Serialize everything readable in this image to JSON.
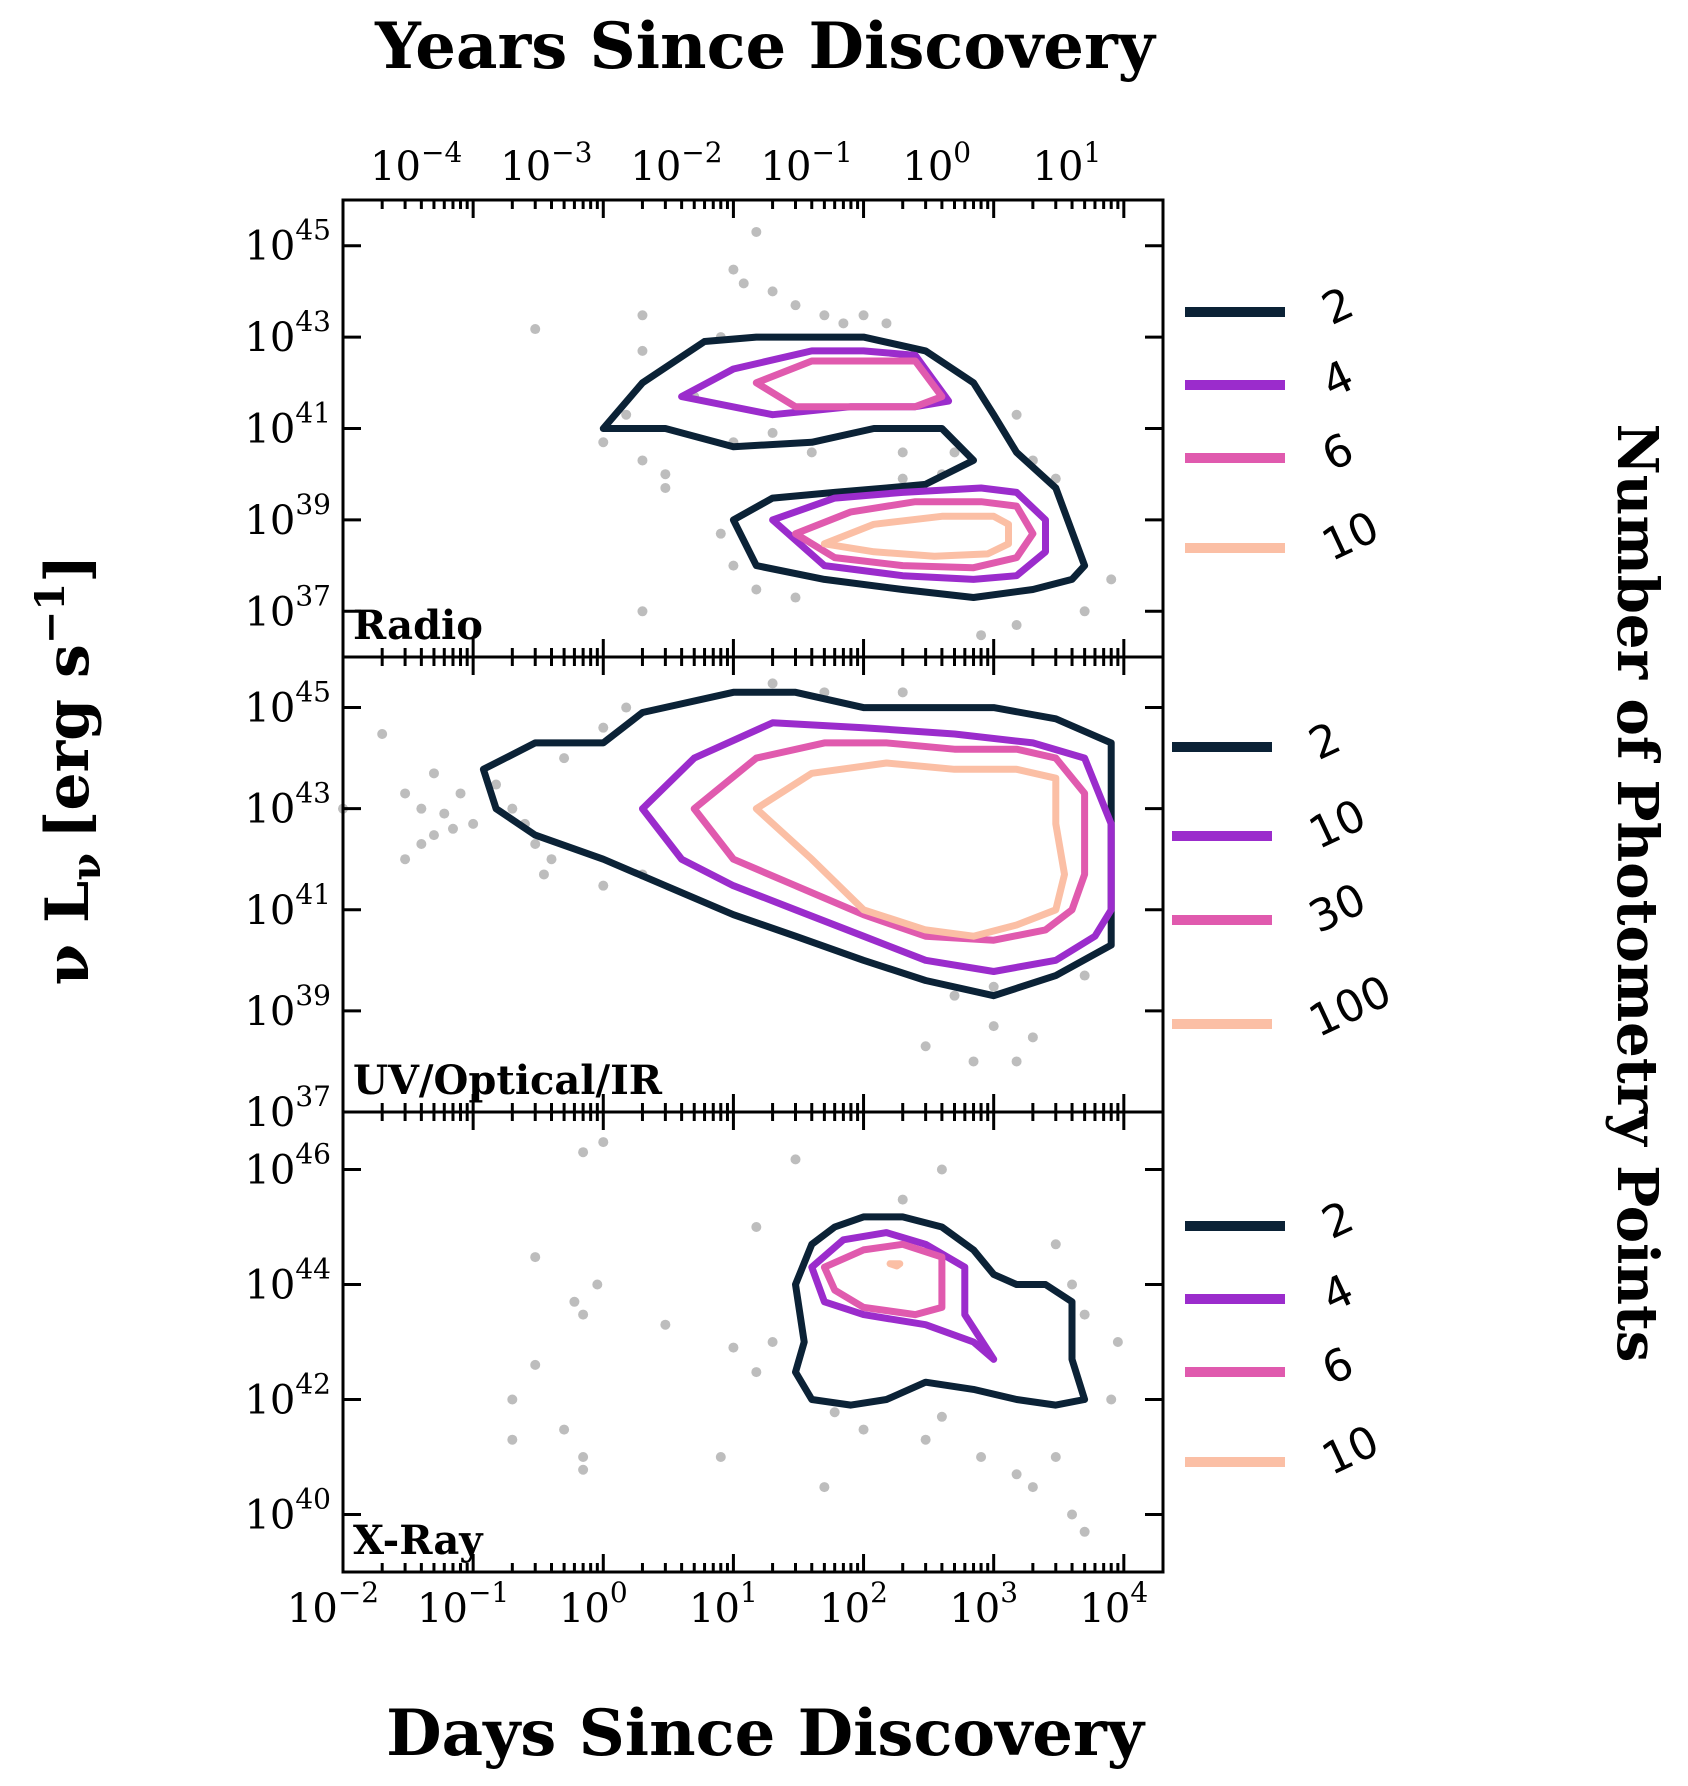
{
  "figure": {
    "top_axis_title": "Years Since Discovery",
    "bottom_axis_title": "Days Since Discovery",
    "y_axis_title": "ν L",
    "y_axis_title_sub": "ν",
    "y_axis_title_unit": "[erg s",
    "y_axis_title_sup": "−1",
    "y_axis_title_end": "]",
    "colorbar_title": "Number of Photometry Points"
  },
  "colors": {
    "level1": "#0b2236",
    "level2": "#9b2ccc",
    "level3": "#e05aae",
    "level4": "#fbbfa5",
    "points": "#bdbdbd"
  },
  "chart_data": [
    {
      "type": "scatter",
      "panel_label": "Radio",
      "x_scale": "log",
      "y_scale": "log",
      "xlim": [
        0.01,
        20000
      ],
      "ylim": [
        1e+36,
        1e+46
      ],
      "x_ticks": [
        0.01,
        0.1,
        1,
        10,
        100,
        1000,
        10000
      ],
      "y_ticks": [
        1e+37,
        1e+39,
        1e+41,
        1e+43,
        1e+45
      ],
      "y_tick_labels": [
        {
          "b": "10",
          "e": "37"
        },
        {
          "b": "10",
          "e": "39"
        },
        {
          "b": "10",
          "e": "41"
        },
        {
          "b": "10",
          "e": "43"
        },
        {
          "b": "10",
          "e": "45"
        }
      ],
      "top_ticks_years": [
        "-4",
        "-3",
        "-2",
        "-1",
        "0",
        "1"
      ],
      "legend": [
        "2",
        "4",
        "6",
        "10"
      ],
      "contours": [
        {
          "level": "2",
          "x": [
            1,
            2,
            6,
            15,
            40,
            100,
            300,
            700,
            1000,
            1500,
            3000,
            5000,
            4000,
            2000,
            700,
            200,
            50,
            15,
            10,
            20,
            60,
            150,
            300,
            700,
            400,
            120,
            40,
            10,
            3,
            1
          ],
          "y": [
            1e+41,
            1e+42,
            8e+42,
            1e+43,
            1e+43,
            1e+43,
            5e+42,
            1e+42,
            2e+41,
            3e+40,
            5e+39,
            1e+38,
            5e+37,
            3e+37,
            2e+37,
            3e+37,
            5e+37,
            1e+38,
            1e+39,
            3e+39,
            4e+39,
            5e+39,
            6e+39,
            2e+40,
            1e+41,
            1e+41,
            5e+40,
            4e+40,
            1e+41,
            1e+41
          ],
          "closed": true
        },
        {
          "level": "4",
          "x": [
            4,
            10,
            40,
            100,
            250,
            450,
            250,
            80,
            20,
            4
          ],
          "y": [
            5e+41,
            2e+42,
            5e+42,
            5e+42,
            4e+42,
            4e+41,
            3e+41,
            3e+41,
            2e+41,
            5e+41
          ],
          "closed": true
        },
        {
          "level": "6",
          "x": [
            15,
            40,
            100,
            250,
            400,
            250,
            100,
            30,
            15
          ],
          "y": [
            1e+42,
            3e+42,
            3e+42,
            3e+42,
            5e+41,
            3e+41,
            3e+41,
            3e+41,
            1e+42
          ],
          "closed": true
        },
        {
          "level": "4",
          "x": [
            20,
            60,
            200,
            800,
            1500,
            2500,
            2500,
            1500,
            700,
            200,
            50,
            20
          ],
          "y": [
            1e+39,
            3e+39,
            4e+39,
            5e+39,
            4e+39,
            1e+39,
            2e+38,
            6e+37,
            5e+37,
            6e+37,
            1e+38,
            1e+39
          ],
          "closed": true
        },
        {
          "level": "6",
          "x": [
            30,
            80,
            250,
            800,
            1500,
            2000,
            1500,
            700,
            200,
            60,
            30
          ],
          "y": [
            5e+38,
            1.5e+39,
            2.5e+39,
            2.5e+39,
            2e+39,
            5e+38,
            1.5e+38,
            9e+37,
            1e+38,
            1.5e+38,
            5e+38
          ],
          "closed": true
        },
        {
          "level": "10",
          "x": [
            50,
            120,
            400,
            1000,
            1300,
            1300,
            900,
            350,
            120,
            50
          ],
          "y": [
            3e+38,
            8e+38,
            1.2e+39,
            1.2e+39,
            8e+38,
            3e+38,
            1.8e+38,
            1.6e+38,
            2e+38,
            3e+38
          ],
          "closed": true
        }
      ],
      "points": [
        {
          "x": 0.3,
          "y": 1.5e+43
        },
        {
          "x": 2,
          "y": 3e+43
        },
        {
          "x": 2,
          "y": 5e+42
        },
        {
          "x": 1.5,
          "y": 2e+41
        },
        {
          "x": 1,
          "y": 5e+40
        },
        {
          "x": 2,
          "y": 2e+40
        },
        {
          "x": 3,
          "y": 5e+39
        },
        {
          "x": 2,
          "y": 1e+37
        },
        {
          "x": 8,
          "y": 1e+43
        },
        {
          "x": 10,
          "y": 3e+44
        },
        {
          "x": 12,
          "y": 1.5e+44
        },
        {
          "x": 15,
          "y": 2e+45
        },
        {
          "x": 20,
          "y": 1e+44
        },
        {
          "x": 30,
          "y": 5e+43
        },
        {
          "x": 50,
          "y": 3e+43
        },
        {
          "x": 70,
          "y": 2e+43
        },
        {
          "x": 100,
          "y": 3e+43
        },
        {
          "x": 150,
          "y": 2e+43
        },
        {
          "x": 10,
          "y": 5e+40
        },
        {
          "x": 20,
          "y": 8e+40
        },
        {
          "x": 40,
          "y": 3e+40
        },
        {
          "x": 200,
          "y": 8e+39
        },
        {
          "x": 500,
          "y": 3e+40
        },
        {
          "x": 1500,
          "y": 2e+41
        },
        {
          "x": 2000,
          "y": 2e+40
        },
        {
          "x": 3000,
          "y": 8e+39
        },
        {
          "x": 5000,
          "y": 1e+37
        },
        {
          "x": 8000,
          "y": 5e+37
        },
        {
          "x": 1500,
          "y": 5e+36
        },
        {
          "x": 800,
          "y": 3e+36
        },
        {
          "x": 10,
          "y": 1e+38
        },
        {
          "x": 15,
          "y": 3e+37
        },
        {
          "x": 30,
          "y": 2e+37
        },
        {
          "x": 8,
          "y": 5e+38
        },
        {
          "x": 400,
          "y": 1e+40
        },
        {
          "x": 200,
          "y": 3e+40
        },
        {
          "x": 5,
          "y": 5e+41
        },
        {
          "x": 3,
          "y": 1e+40
        }
      ]
    },
    {
      "type": "scatter",
      "panel_label": "UV/Optical/IR",
      "x_scale": "log",
      "y_scale": "log",
      "xlim": [
        0.01,
        20000
      ],
      "ylim": [
        1e+37,
        1e+46
      ],
      "x_ticks": [
        0.01,
        0.1,
        1,
        10,
        100,
        1000,
        10000
      ],
      "y_ticks": [
        1e+37,
        1e+39,
        1e+41,
        1e+43,
        1e+45
      ],
      "y_tick_labels": [
        {
          "b": "10",
          "e": "37"
        },
        {
          "b": "10",
          "e": "39"
        },
        {
          "b": "10",
          "e": "41"
        },
        {
          "b": "10",
          "e": "43"
        },
        {
          "b": "10",
          "e": "45"
        }
      ],
      "legend": [
        "2",
        "10",
        "30",
        "100"
      ],
      "contours": [
        {
          "level": "2",
          "x": [
            0.12,
            0.3,
            1,
            2,
            10,
            30,
            100,
            300,
            1000,
            3000,
            8000,
            8000,
            3000,
            1000,
            300,
            100,
            30,
            10,
            3,
            1,
            0.3,
            0.15,
            0.12
          ],
          "y": [
            6e+43,
            2e+44,
            2e+44,
            8e+44,
            2e+45,
            2e+45,
            1e+45,
            1e+45,
            1e+45,
            6e+44,
            2e+44,
            2e+40,
            5e+39,
            2e+39,
            4e+39,
            1e+40,
            3e+40,
            8e+40,
            3e+41,
            1e+42,
            3e+42,
            1e+43,
            6e+43
          ],
          "closed": false
        },
        {
          "level": "10",
          "x": [
            2,
            5,
            20,
            100,
            500,
            2000,
            5000,
            8000,
            8000,
            6000,
            3000,
            1000,
            300,
            100,
            30,
            10,
            4,
            2
          ],
          "y": [
            1e+43,
            1e+44,
            5e+44,
            4e+44,
            3e+44,
            2e+44,
            1e+44,
            5e+42,
            1e+41,
            3e+40,
            1e+40,
            6e+39,
            1e+40,
            3e+40,
            1e+41,
            3e+41,
            1e+42,
            1e+43
          ],
          "closed": false
        },
        {
          "level": "30",
          "x": [
            5,
            15,
            50,
            150,
            500,
            1500,
            3000,
            5000,
            5000,
            4000,
            2500,
            1000,
            300,
            100,
            30,
            10,
            5
          ],
          "y": [
            1e+43,
            1e+44,
            2e+44,
            2e+44,
            1.5e+44,
            1.5e+44,
            1e+44,
            2e+43,
            5e+41,
            1e+41,
            4e+40,
            2.5e+40,
            3e+40,
            8e+40,
            3e+41,
            1e+42,
            1e+43
          ],
          "closed": true
        },
        {
          "level": "100",
          "x": [
            15,
            40,
            150,
            500,
            1500,
            3000,
            3000,
            3500,
            3000,
            1500,
            700,
            300,
            100,
            40,
            15
          ],
          "y": [
            1e+43,
            5e+43,
            8e+43,
            6e+43,
            6e+43,
            4e+43,
            5e+42,
            5e+41,
            1e+41,
            5e+40,
            3e+40,
            4e+40,
            1e+41,
            1e+42,
            1e+43
          ],
          "closed": true
        }
      ],
      "points": [
        {
          "x": 0.01,
          "y": 1e+43
        },
        {
          "x": 0.02,
          "y": 3e+44
        },
        {
          "x": 0.04,
          "y": 1e+43
        },
        {
          "x": 0.05,
          "y": 3e+42
        },
        {
          "x": 0.03,
          "y": 2e+43
        },
        {
          "x": 0.06,
          "y": 8e+42
        },
        {
          "x": 0.08,
          "y": 2e+43
        },
        {
          "x": 0.1,
          "y": 5e+42
        },
        {
          "x": 0.15,
          "y": 3e+43
        },
        {
          "x": 0.2,
          "y": 1e+43
        },
        {
          "x": 0.25,
          "y": 5e+42
        },
        {
          "x": 0.3,
          "y": 2e+42
        },
        {
          "x": 0.4,
          "y": 1e+42
        },
        {
          "x": 0.35,
          "y": 5e+41
        },
        {
          "x": 0.5,
          "y": 1e+44
        },
        {
          "x": 1,
          "y": 4e+44
        },
        {
          "x": 1.5,
          "y": 1e+45
        },
        {
          "x": 1,
          "y": 3e+41
        },
        {
          "x": 2,
          "y": 5e+41
        },
        {
          "x": 0.05,
          "y": 5e+43
        },
        {
          "x": 0.04,
          "y": 2e+42
        },
        {
          "x": 0.03,
          "y": 1e+42
        },
        {
          "x": 0.07,
          "y": 4e+42
        },
        {
          "x": 500,
          "y": 2e+39
        },
        {
          "x": 1000,
          "y": 5e+38
        },
        {
          "x": 300,
          "y": 2e+38
        },
        {
          "x": 700,
          "y": 1e+38
        },
        {
          "x": 2000,
          "y": 3e+38
        },
        {
          "x": 1500,
          "y": 1e+38
        },
        {
          "x": 1000,
          "y": 3e+39
        },
        {
          "x": 5000,
          "y": 5e+39
        },
        {
          "x": 20,
          "y": 3e+45
        },
        {
          "x": 50,
          "y": 2e+45
        },
        {
          "x": 200,
          "y": 2e+45
        }
      ]
    },
    {
      "type": "scatter",
      "panel_label": "X-Ray",
      "x_scale": "log",
      "y_scale": "log",
      "xlim": [
        0.01,
        20000
      ],
      "ylim": [
        1e+39,
        1e+47
      ],
      "x_ticks": [
        0.01,
        0.1,
        1,
        10,
        100,
        1000,
        10000
      ],
      "x_tick_labels": [
        {
          "b": "10",
          "e": "−2"
        },
        {
          "b": "10",
          "e": "−1"
        },
        {
          "b": "10",
          "e": "0"
        },
        {
          "b": "10",
          "e": "1"
        },
        {
          "b": "10",
          "e": "2"
        },
        {
          "b": "10",
          "e": "3"
        },
        {
          "b": "10",
          "e": "4"
        }
      ],
      "y_ticks": [
        1e+40,
        1e+42,
        1e+44,
        1e+46
      ],
      "y_tick_labels": [
        {
          "b": "10",
          "e": "40"
        },
        {
          "b": "10",
          "e": "42"
        },
        {
          "b": "10",
          "e": "44"
        },
        {
          "b": "10",
          "e": "46"
        }
      ],
      "legend": [
        "2",
        "4",
        "6",
        "10"
      ],
      "contours": [
        {
          "level": "2",
          "x": [
            30,
            40,
            60,
            100,
            200,
            400,
            700,
            1000,
            1500,
            2500,
            4000,
            4000,
            5000,
            3000,
            1500,
            700,
            300,
            150,
            80,
            40,
            30,
            35,
            30
          ],
          "y": [
            1e+44,
            5e+44,
            1e+45,
            1.5e+45,
            1.5e+45,
            1e+45,
            4e+44,
            1.5e+44,
            1e+44,
            1e+44,
            5e+43,
            5e+42,
            1e+42,
            8e+41,
            1e+42,
            1.5e+42,
            2e+42,
            1e+42,
            8e+41,
            1e+42,
            3e+42,
            1e+43,
            1e+44
          ],
          "closed": true
        },
        {
          "level": "4",
          "x": [
            40,
            70,
            150,
            300,
            600,
            600,
            1000,
            700,
            300,
            100,
            50,
            40
          ],
          "y": [
            2e+44,
            6e+44,
            8e+44,
            5e+44,
            2e+44,
            3e+43,
            5e+42,
            1e+43,
            2e+43,
            3e+43,
            5e+43,
            2e+44
          ],
          "closed": true
        },
        {
          "level": "6",
          "x": [
            50,
            100,
            200,
            400,
            400,
            250,
            100,
            60,
            50
          ],
          "y": [
            2e+44,
            4e+44,
            5e+44,
            3e+44,
            4e+43,
            3e+43,
            4e+43,
            8e+43,
            2e+44
          ],
          "closed": true
        },
        {
          "level": "10",
          "x": [
            160,
            190,
            180,
            160
          ],
          "y": [
            2.3e+44,
            2.3e+44,
            2.1e+44,
            2.3e+44
          ],
          "closed": true
        }
      ],
      "points": [
        {
          "x": 0.3,
          "y": 3e+44
        },
        {
          "x": 0.7,
          "y": 2e+46
        },
        {
          "x": 1,
          "y": 3e+46
        },
        {
          "x": 0.7,
          "y": 3e+43
        },
        {
          "x": 0.9,
          "y": 1e+44
        },
        {
          "x": 0.6,
          "y": 5e+43
        },
        {
          "x": 0.3,
          "y": 4e+42
        },
        {
          "x": 0.2,
          "y": 1e+42
        },
        {
          "x": 0.2,
          "y": 2e+41
        },
        {
          "x": 0.5,
          "y": 3e+41
        },
        {
          "x": 0.7,
          "y": 1e+41
        },
        {
          "x": 0.7,
          "y": 6e+40
        },
        {
          "x": 3,
          "y": 2e+43
        },
        {
          "x": 8,
          "y": 1e+41
        },
        {
          "x": 10,
          "y": 8e+42
        },
        {
          "x": 15,
          "y": 3e+42
        },
        {
          "x": 20,
          "y": 1e+43
        },
        {
          "x": 15,
          "y": 1e+45
        },
        {
          "x": 30,
          "y": 1.5e+46
        },
        {
          "x": 50,
          "y": 3e+40
        },
        {
          "x": 400,
          "y": 1e+46
        },
        {
          "x": 200,
          "y": 3e+45
        },
        {
          "x": 3000,
          "y": 5e+44
        },
        {
          "x": 4000,
          "y": 1e+44
        },
        {
          "x": 5000,
          "y": 3e+43
        },
        {
          "x": 8000,
          "y": 1e+42
        },
        {
          "x": 9000,
          "y": 1e+43
        },
        {
          "x": 3000,
          "y": 1e+41
        },
        {
          "x": 2000,
          "y": 3e+40
        },
        {
          "x": 4000,
          "y": 1e+40
        },
        {
          "x": 5000,
          "y": 5e+39
        },
        {
          "x": 1500,
          "y": 5e+40
        },
        {
          "x": 800,
          "y": 1e+41
        },
        {
          "x": 400,
          "y": 5e+41
        },
        {
          "x": 300,
          "y": 2e+41
        },
        {
          "x": 100,
          "y": 3e+41
        },
        {
          "x": 60,
          "y": 6e+41
        }
      ]
    }
  ]
}
